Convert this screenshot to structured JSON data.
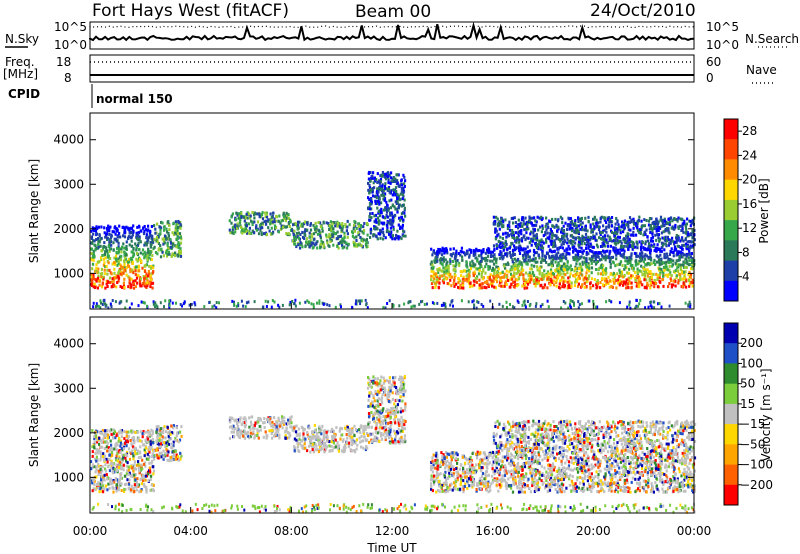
{
  "header": {
    "title": "Fort Hays West (fitACF)",
    "beam": "Beam 00",
    "date": "24/Oct/2010"
  },
  "strip": {
    "nsky_label": "N.Sky",
    "nsearch_label": "N.Search",
    "noise_ticks": [
      "10^5",
      "10^0"
    ],
    "freq_label_1": "Freq.",
    "freq_label_2": "[MHz]",
    "freq_ticks": [
      "18",
      "8"
    ],
    "nave_label": "Nave",
    "nave_ticks": [
      "60",
      "0"
    ],
    "cpid_label": "CPID",
    "cpid_value": "normal 150"
  },
  "xaxis": {
    "label": "Time UT",
    "ticks": [
      "00:00",
      "04:00",
      "08:00",
      "12:00",
      "16:00",
      "20:00",
      "00:00"
    ]
  },
  "chart_data": [
    {
      "type": "heatmap",
      "name": "power",
      "ylabel": "Slant Range [km]",
      "yticks": [
        1000,
        2000,
        3000,
        4000
      ],
      "ylim": [
        200,
        4600
      ],
      "xlim_hours": [
        0,
        24
      ],
      "colorbar_label": "Power [dB]",
      "colorbar_ticks": [
        4,
        8,
        12,
        16,
        20,
        24,
        28
      ],
      "colorbar_range": [
        0,
        30
      ],
      "colors": [
        "#0000ff",
        "#1f3fa8",
        "#2a7a5a",
        "#36a84a",
        "#9acd32",
        "#ffd700",
        "#ff8c00",
        "#ff4500",
        "#ff0000"
      ],
      "echo_regions": [
        {
          "t0": 0.0,
          "t1": 2.5,
          "r0": 700,
          "r1": 2100,
          "level": "high"
        },
        {
          "t0": 2.5,
          "t1": 3.6,
          "r0": 1400,
          "r1": 2200,
          "level": "mid"
        },
        {
          "t0": 5.5,
          "t1": 8.0,
          "r0": 1900,
          "r1": 2400,
          "level": "mid"
        },
        {
          "t0": 8.0,
          "t1": 11.0,
          "r0": 1600,
          "r1": 2200,
          "level": "mid"
        },
        {
          "t0": 11.0,
          "t1": 12.5,
          "r0": 1800,
          "r1": 3300,
          "level": "low"
        },
        {
          "t0": 13.5,
          "t1": 24.0,
          "r0": 700,
          "r1": 1600,
          "level": "high"
        },
        {
          "t0": 16.0,
          "t1": 24.0,
          "r0": 1600,
          "r1": 2300,
          "level": "low"
        }
      ]
    },
    {
      "type": "heatmap",
      "name": "velocity",
      "ylabel": "Slant Range [km]",
      "yticks": [
        1000,
        2000,
        3000,
        4000
      ],
      "ylim": [
        200,
        4600
      ],
      "xlim_hours": [
        0,
        24
      ],
      "colorbar_label": "Velocity [m s⁻¹]",
      "colorbar_ticks": [
        200,
        100,
        50,
        15,
        -15,
        -50,
        -100,
        -200
      ],
      "colors": [
        "#0000b0",
        "#2050c8",
        "#2e8b2e",
        "#7ccd3c",
        "#c0c0c0",
        "#ffd700",
        "#ffa500",
        "#ff6000",
        "#ff0000"
      ],
      "echo_regions": [
        {
          "t0": 0.0,
          "t1": 2.5,
          "r0": 700,
          "r1": 2100,
          "level": "mixed"
        },
        {
          "t0": 2.5,
          "t1": 3.6,
          "r0": 1400,
          "r1": 2200,
          "level": "mixed"
        },
        {
          "t0": 5.5,
          "t1": 8.0,
          "r0": 1900,
          "r1": 2400,
          "level": "gray"
        },
        {
          "t0": 8.0,
          "t1": 11.0,
          "r0": 1600,
          "r1": 2200,
          "level": "gray"
        },
        {
          "t0": 11.0,
          "t1": 12.5,
          "r0": 1800,
          "r1": 3300,
          "level": "mixed"
        },
        {
          "t0": 13.5,
          "t1": 24.0,
          "r0": 700,
          "r1": 1600,
          "level": "mixed"
        },
        {
          "t0": 16.0,
          "t1": 24.0,
          "r0": 1600,
          "r1": 2300,
          "level": "mixed"
        }
      ]
    }
  ]
}
